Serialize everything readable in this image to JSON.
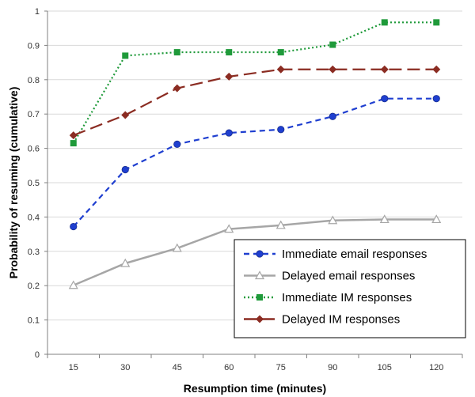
{
  "chart_data": {
    "type": "line",
    "title": "",
    "xlabel": "Resumption time (minutes)",
    "ylabel": "Probability of resuming (cumulative)",
    "categories": [
      "15",
      "30",
      "45",
      "60",
      "75",
      "90",
      "105",
      "120"
    ],
    "ylim": [
      0,
      1
    ],
    "yticks": [
      "0",
      "0.1",
      "0.2",
      "0.3",
      "0.4",
      "0.5",
      "0.6",
      "0.7",
      "0.8",
      "0.9",
      "1"
    ],
    "grid": true,
    "legend_position": "bottom-right",
    "series": [
      {
        "name": "Immediate email responses",
        "values": [
          0.372,
          0.538,
          0.612,
          0.645,
          0.655,
          0.693,
          0.745,
          0.745
        ],
        "color": "#1f3fd0",
        "line_style": "dashed",
        "marker": "circle"
      },
      {
        "name": "Delayed email responses",
        "values": [
          0.201,
          0.265,
          0.309,
          0.365,
          0.376,
          0.39,
          0.393,
          0.393
        ],
        "color": "#a6a6a6",
        "line_style": "solid",
        "marker": "triangle"
      },
      {
        "name": "Immediate IM responses",
        "values": [
          0.615,
          0.87,
          0.88,
          0.88,
          0.88,
          0.902,
          0.967,
          0.967
        ],
        "color": "#1f9a3a",
        "line_style": "dotted",
        "marker": "square"
      },
      {
        "name": "Delayed IM responses",
        "values": [
          0.638,
          0.697,
          0.775,
          0.809,
          0.83,
          0.83,
          0.83,
          0.83
        ],
        "color": "#8b2c22",
        "line_style": "longdash",
        "marker": "diamond"
      }
    ]
  }
}
